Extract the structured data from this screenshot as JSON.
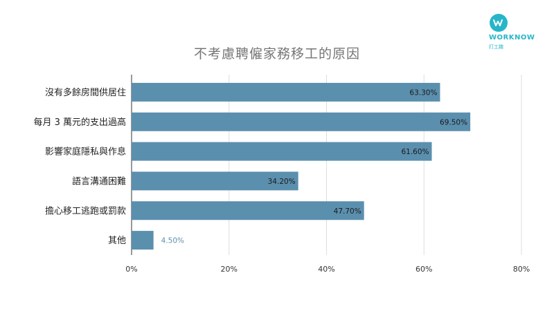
{
  "brand": {
    "name": "WORKNOW",
    "sub": "打工趣",
    "color": "#27b5c9"
  },
  "chart_data": {
    "type": "bar",
    "orientation": "horizontal",
    "title": "不考慮聘僱家務移工的原因",
    "categories": [
      "沒有多餘房間供居住",
      "每月 3 萬元的支出過高",
      "影響家庭隱私與作息",
      "語言溝通困難",
      "擔心移工逃跑或罰款",
      "其他"
    ],
    "values": [
      63.3,
      69.5,
      61.6,
      34.2,
      47.7,
      4.5
    ],
    "data_labels": [
      "63.30%",
      "69.50%",
      "61.60%",
      "34.20%",
      "47.70%",
      "4.50%"
    ],
    "xlim": [
      0,
      80
    ],
    "x_ticks": [
      0,
      20,
      40,
      60,
      80
    ],
    "x_tick_labels": [
      "0%",
      "20%",
      "40%",
      "60%",
      "80%"
    ],
    "grid": true,
    "bar_color": "#5b8fae"
  }
}
